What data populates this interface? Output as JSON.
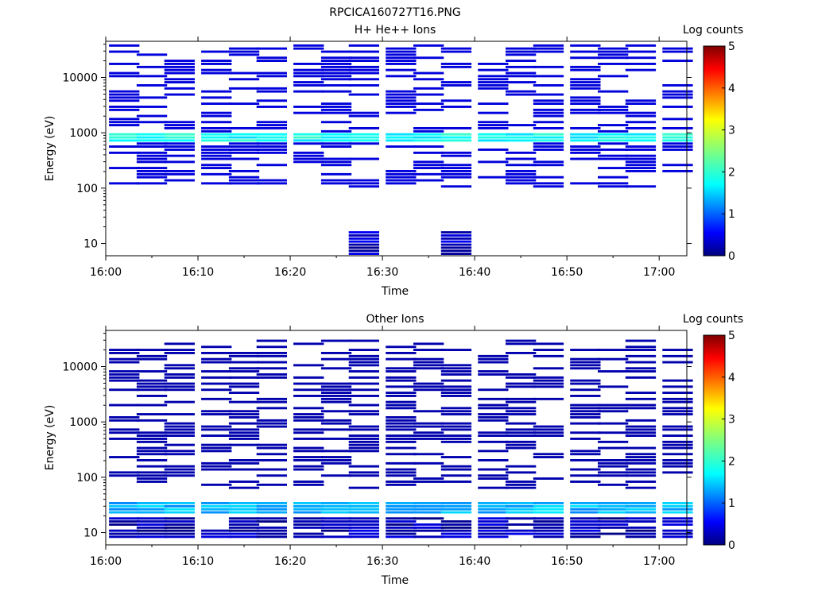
{
  "figure": {
    "title": "RPCICA160727T16.PNG"
  },
  "chart_data": [
    {
      "type": "heatmap",
      "title": "H+ He++ Ions",
      "xlabel": "Time",
      "ylabel": "Energy (eV)",
      "x_ticks": [
        "16:00",
        "16:10",
        "16:20",
        "16:30",
        "16:40",
        "16:50",
        "17:00"
      ],
      "x_range": [
        "16:00",
        "17:03"
      ],
      "y_scale": "log",
      "y_ticks": [
        "10",
        "100",
        "1000",
        "10000"
      ],
      "y_range": [
        6,
        45000
      ],
      "colorbar": {
        "label": "Log counts",
        "ticks": [
          "0",
          "1",
          "2",
          "3",
          "4",
          "5"
        ],
        "range": [
          0,
          5
        ],
        "colormap": "jet"
      },
      "time_bins": [
        "16:02",
        "16:05",
        "16:08",
        "16:12",
        "16:15",
        "16:18",
        "16:22",
        "16:25",
        "16:28",
        "16:32",
        "16:35",
        "16:38",
        "16:42",
        "16:45",
        "16:48",
        "16:52",
        "16:55",
        "16:58",
        "17:02"
      ],
      "key_features": [
        {
          "time": "16:02-17:02",
          "energy_eV": [
            700,
            950
          ],
          "log_counts": 1.8,
          "note": "persistent band near 800 eV"
        },
        {
          "time": "16:02-17:02",
          "energy_eV": [
            100,
            40000
          ],
          "log_counts": 0.4,
          "note": "sparse low counts across energies"
        },
        {
          "time": "16:28",
          "energy_eV": [
            6,
            16
          ],
          "log_counts": 0.3
        },
        {
          "time": "16:38",
          "energy_eV": [
            6,
            16
          ],
          "log_counts": 0.3
        }
      ]
    },
    {
      "type": "heatmap",
      "title": "Other Ions",
      "xlabel": "Time",
      "ylabel": "Energy (eV)",
      "x_ticks": [
        "16:00",
        "16:10",
        "16:20",
        "16:30",
        "16:40",
        "16:50",
        "17:00"
      ],
      "x_range": [
        "16:00",
        "17:03"
      ],
      "y_scale": "log",
      "y_ticks": [
        "10",
        "100",
        "1000",
        "10000"
      ],
      "y_range": [
        6,
        45000
      ],
      "colorbar": {
        "label": "Log counts",
        "ticks": [
          "0",
          "1",
          "2",
          "3",
          "4",
          "5"
        ],
        "range": [
          0,
          5
        ],
        "colormap": "jet"
      },
      "time_bins": [
        "16:02",
        "16:05",
        "16:08",
        "16:12",
        "16:15",
        "16:18",
        "16:22",
        "16:25",
        "16:28",
        "16:32",
        "16:35",
        "16:38",
        "16:42",
        "16:45",
        "16:48",
        "16:52",
        "16:55",
        "16:58",
        "17:02"
      ],
      "key_features": [
        {
          "time": "16:02-17:02",
          "energy_eV": [
            22,
            38
          ],
          "log_counts": 1.4,
          "note": "persistent low-energy band"
        },
        {
          "time": "16:02-17:02",
          "energy_eV": [
            8,
            20
          ],
          "log_counts": 0.2
        },
        {
          "time": "16:02-17:02",
          "energy_eV": [
            60,
            30000
          ],
          "log_counts": 0.2,
          "note": "sparse single-bin counts"
        }
      ]
    }
  ]
}
